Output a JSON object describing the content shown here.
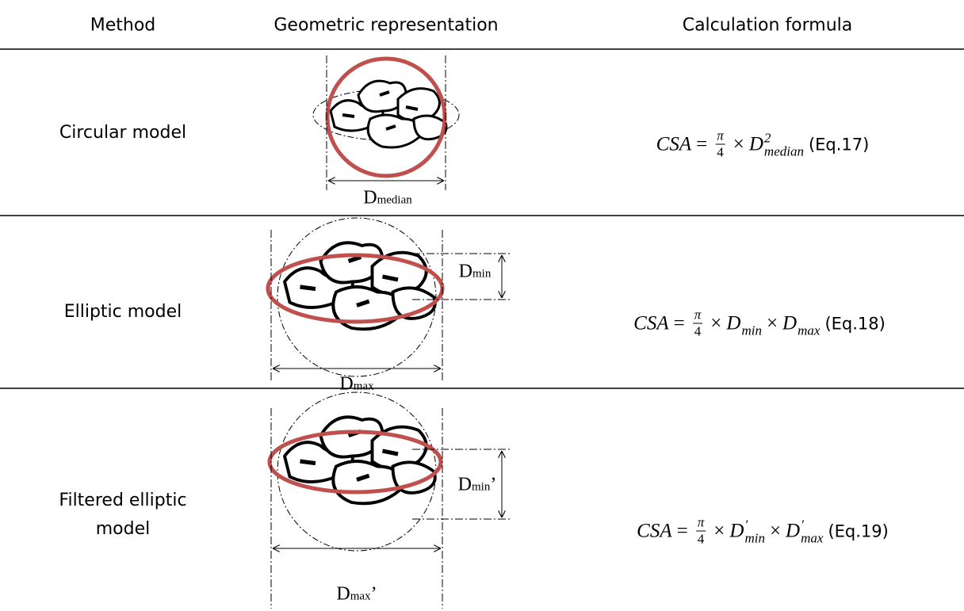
{
  "table": {
    "header": [
      "Method",
      "Geometric representation",
      "Calculation formula"
    ],
    "rows": [
      {
        "method": "Circular model",
        "labels": [
          {
            "main": "D",
            "sub": "median"
          }
        ],
        "formula": {
          "lhs": "CSA",
          "eq": "=",
          "num": "π",
          "den": "4",
          "terms": [
            {
              "t": "×"
            },
            {
              "t": "D",
              "sup": "2",
              "sub": "median"
            }
          ],
          "ref": "(Eq.17)"
        }
      },
      {
        "method": "Elliptic model",
        "labels": [
          {
            "main": "D",
            "sub": "min"
          },
          {
            "main": "D",
            "sub": "max"
          }
        ],
        "formula": {
          "lhs": "CSA",
          "eq": "=",
          "num": "π",
          "den": "4",
          "terms": [
            {
              "t": "×"
            },
            {
              "t": "D",
              "sub": "min"
            },
            {
              "t": "×"
            },
            {
              "t": "D",
              "sub": "max"
            }
          ],
          "ref": "(Eq.18)"
        }
      },
      {
        "method": "Filtered elliptic model",
        "labels": [
          {
            "main": "D",
            "sub": "min",
            "mark": "’"
          },
          {
            "main": "D",
            "sub": "max",
            "mark": "’"
          }
        ],
        "formula": {
          "lhs": "CSA",
          "eq": "=",
          "num": "π",
          "den": "4",
          "terms": [
            {
              "t": "×"
            },
            {
              "t": "D",
              "sup": "′",
              "sub": "min"
            },
            {
              "t": "×"
            },
            {
              "t": "D",
              "sup": "′",
              "sub": "max"
            }
          ],
          "ref": "(Eq.19)"
        }
      }
    ]
  }
}
